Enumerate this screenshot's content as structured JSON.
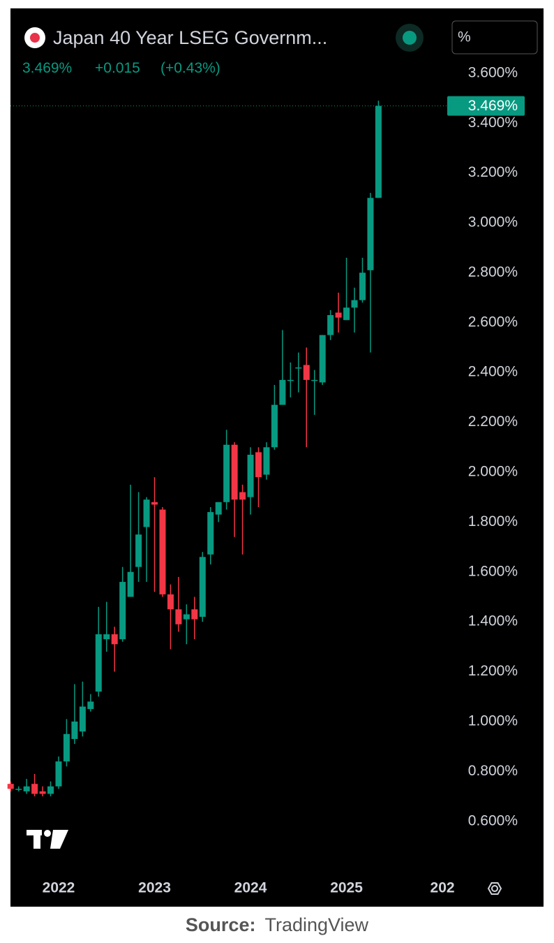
{
  "chart_data": {
    "type": "candlestick",
    "title": "Japan 40 Year LSEG Governm...",
    "last_label": "3.469%",
    "change": "+0.015",
    "change_pct": "(+0.43%)",
    "unit": "%",
    "last_price": {
      "value": 3.469,
      "label": "3.469%"
    },
    "up_color": "#089981",
    "down_color": "#f23645",
    "grid": false,
    "categories": [
      null,
      null,
      null,
      null,
      null,
      null,
      "2022",
      null,
      null,
      null,
      null,
      null,
      null,
      null,
      null,
      null,
      null,
      null,
      "2023",
      null,
      null,
      null,
      null,
      null,
      null,
      null,
      null,
      null,
      null,
      null,
      "2024",
      null,
      null,
      null,
      null,
      null,
      null,
      null,
      null,
      null,
      null,
      null,
      "2025",
      null,
      null,
      null,
      null,
      null,
      null,
      null,
      null,
      null,
      null,
      null,
      "202"
    ],
    "open": [
      0.75,
      0.73,
      0.72,
      0.75,
      0.72,
      0.71,
      0.74,
      0.84,
      0.93,
      0.96,
      1.05,
      1.12,
      1.33,
      1.35,
      1.33,
      1.5,
      1.62,
      1.78,
      1.88,
      1.85,
      1.51,
      1.45,
      1.41,
      1.45,
      1.42,
      1.67,
      1.83,
      1.88,
      2.11,
      1.92,
      1.9,
      2.08,
      1.99,
      2.1,
      2.27,
      2.37,
      2.42,
      2.43,
      2.37,
      2.36,
      2.55,
      2.64,
      2.61,
      2.66,
      2.69,
      2.81,
      3.1,
      null,
      null,
      null,
      null,
      null,
      null,
      null,
      null
    ],
    "high": [
      0.76,
      0.74,
      0.77,
      0.79,
      0.74,
      0.76,
      0.86,
      1.01,
      1.15,
      1.16,
      1.11,
      1.46,
      1.48,
      1.38,
      1.62,
      1.95,
      1.92,
      1.9,
      1.98,
      1.86,
      1.55,
      1.58,
      1.47,
      1.5,
      1.68,
      1.86,
      1.88,
      2.17,
      2.12,
      1.95,
      2.1,
      2.1,
      2.12,
      2.35,
      2.57,
      2.44,
      2.48,
      2.5,
      2.41,
      2.55,
      2.65,
      2.72,
      2.86,
      2.74,
      2.86,
      3.12,
      3.49,
      null,
      null,
      null,
      null,
      null,
      null,
      null,
      null
    ],
    "low": [
      0.72,
      0.72,
      0.71,
      0.7,
      0.7,
      0.7,
      0.73,
      0.82,
      0.91,
      0.94,
      1.04,
      1.1,
      1.28,
      1.2,
      1.32,
      1.5,
      1.56,
      1.56,
      1.52,
      1.5,
      1.29,
      1.36,
      1.31,
      1.33,
      1.4,
      1.63,
      1.8,
      1.85,
      1.74,
      1.67,
      1.83,
      1.86,
      1.97,
      2.09,
      2.27,
      2.3,
      2.32,
      2.1,
      2.23,
      2.35,
      2.53,
      2.56,
      2.61,
      2.56,
      2.68,
      2.48,
      3.1,
      null,
      null,
      null,
      null,
      null,
      null,
      null,
      null
    ],
    "close": [
      0.73,
      0.73,
      0.74,
      0.71,
      0.71,
      0.74,
      0.84,
      0.95,
      1.0,
      1.06,
      1.08,
      1.35,
      1.35,
      1.31,
      1.56,
      1.6,
      1.75,
      1.89,
      1.87,
      1.51,
      1.45,
      1.39,
      1.43,
      1.41,
      1.66,
      1.84,
      1.88,
      2.11,
      1.89,
      1.89,
      2.07,
      1.98,
      2.1,
      2.27,
      2.37,
      2.37,
      2.42,
      2.37,
      2.37,
      2.55,
      2.63,
      2.62,
      2.66,
      2.69,
      2.8,
      3.1,
      3.469,
      null,
      null,
      null,
      null,
      null,
      null,
      null,
      null
    ],
    "ylim": [
      0.42,
      3.86
    ],
    "yticks": [
      {
        "value": 0.6,
        "label": "0.600%"
      },
      {
        "value": 0.8,
        "label": "0.800%"
      },
      {
        "value": 1.0,
        "label": "1.000%"
      },
      {
        "value": 1.2,
        "label": "1.200%"
      },
      {
        "value": 1.4,
        "label": "1.400%"
      },
      {
        "value": 1.6,
        "label": "1.600%"
      },
      {
        "value": 1.8,
        "label": "1.800%"
      },
      {
        "value": 2.0,
        "label": "2.000%"
      },
      {
        "value": 2.2,
        "label": "2.200%"
      },
      {
        "value": 2.4,
        "label": "2.400%"
      },
      {
        "value": 2.6,
        "label": "2.600%"
      },
      {
        "value": 2.8,
        "label": "2.800%"
      },
      {
        "value": 3.0,
        "label": "3.000%"
      },
      {
        "value": 3.2,
        "label": "3.200%"
      },
      {
        "value": 3.4,
        "label": "3.400%"
      },
      {
        "value": 3.6,
        "label": "3.600%"
      }
    ]
  },
  "source": {
    "label": "Source:",
    "name": "TradingView"
  }
}
